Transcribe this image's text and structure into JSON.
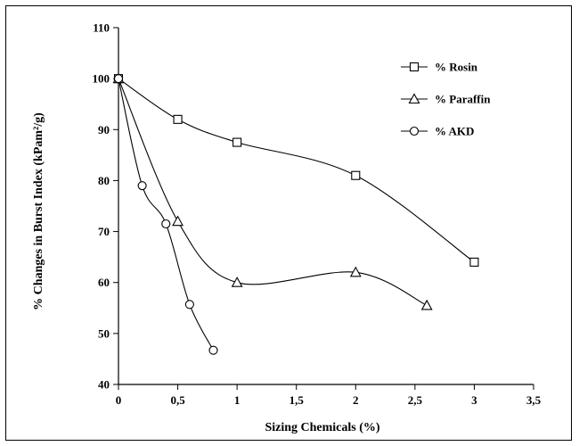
{
  "chart_data": {
    "type": "line",
    "title": "",
    "xlabel": "Sizing Chemicals (%)",
    "ylabel": "% Changes in Burst Index (kPam²/g)",
    "xlim": [
      0,
      3.5
    ],
    "ylim": [
      40,
      110
    ],
    "x_ticks": [
      0,
      0.5,
      1,
      1.5,
      2,
      2.5,
      3,
      3.5
    ],
    "x_tick_labels": [
      "0",
      "0,5",
      "1",
      "1,5",
      "2",
      "2,5",
      "3",
      "3,5"
    ],
    "y_ticks": [
      40,
      50,
      60,
      70,
      80,
      90,
      100,
      110
    ],
    "y_tick_labels": [
      "40",
      "50",
      "60",
      "70",
      "80",
      "90",
      "100",
      "110"
    ],
    "grid": false,
    "legend_position": "top-right",
    "series": [
      {
        "name": "% Rosin",
        "marker": "square",
        "x": [
          0,
          0.5,
          1,
          2,
          3
        ],
        "y": [
          100,
          92,
          87.5,
          81,
          64
        ]
      },
      {
        "name": "% Paraffin",
        "marker": "triangle",
        "x": [
          0,
          0.5,
          1,
          2,
          2.6
        ],
        "y": [
          100,
          72,
          60,
          62,
          55.5
        ]
      },
      {
        "name": "% AKD",
        "marker": "circle",
        "x": [
          0,
          0.2,
          0.4,
          0.6,
          0.8
        ],
        "y": [
          100,
          79,
          71.5,
          55.7,
          46.7
        ]
      }
    ]
  }
}
